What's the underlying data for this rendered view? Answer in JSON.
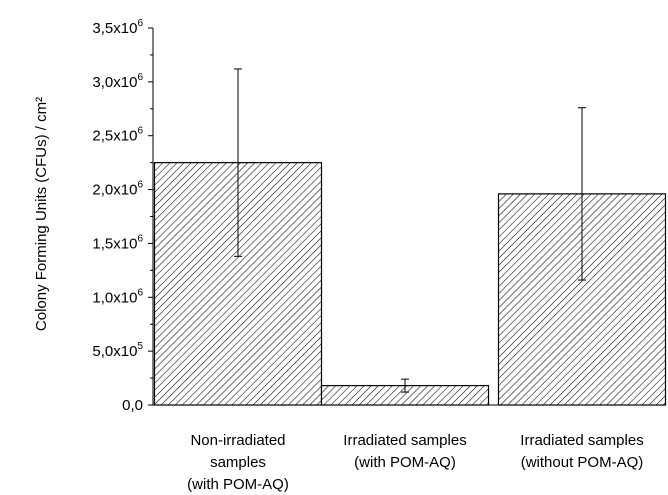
{
  "chart_data": {
    "type": "bar",
    "title": "",
    "xlabel": "",
    "ylabel": "Colony Forming Units (CFUs) / cm²",
    "ylim": [
      0,
      3500000
    ],
    "grid": false,
    "categories": [
      [
        "Non-irradiated",
        "samples",
        "(with POM-AQ)"
      ],
      [
        "Irradiated samples",
        "(with POM-AQ)"
      ],
      [
        "Irradiated samples",
        "(without POM-AQ)"
      ]
    ],
    "values": [
      2250000,
      180000,
      1960000
    ],
    "errors": [
      870000,
      60000,
      800000
    ],
    "bar_fill": "diagonal-hatch",
    "colors": {
      "bar_edge": "#000000",
      "hatch": "#000000",
      "background": "#ffffff"
    },
    "yticks": [
      {
        "mantissa": "0,0",
        "exponent": ""
      },
      {
        "mantissa": "5,0x10",
        "exponent": "5"
      },
      {
        "mantissa": "1,0x10",
        "exponent": "6"
      },
      {
        "mantissa": "1,5x10",
        "exponent": "6"
      },
      {
        "mantissa": "2,0x10",
        "exponent": "6"
      },
      {
        "mantissa": "2,5x10",
        "exponent": "6"
      },
      {
        "mantissa": "3,0x10",
        "exponent": "6"
      },
      {
        "mantissa": "3,5x10",
        "exponent": "6"
      }
    ],
    "ytick_values": [
      0,
      500000,
      1000000,
      1500000,
      2000000,
      2500000,
      3000000,
      3500000
    ]
  }
}
